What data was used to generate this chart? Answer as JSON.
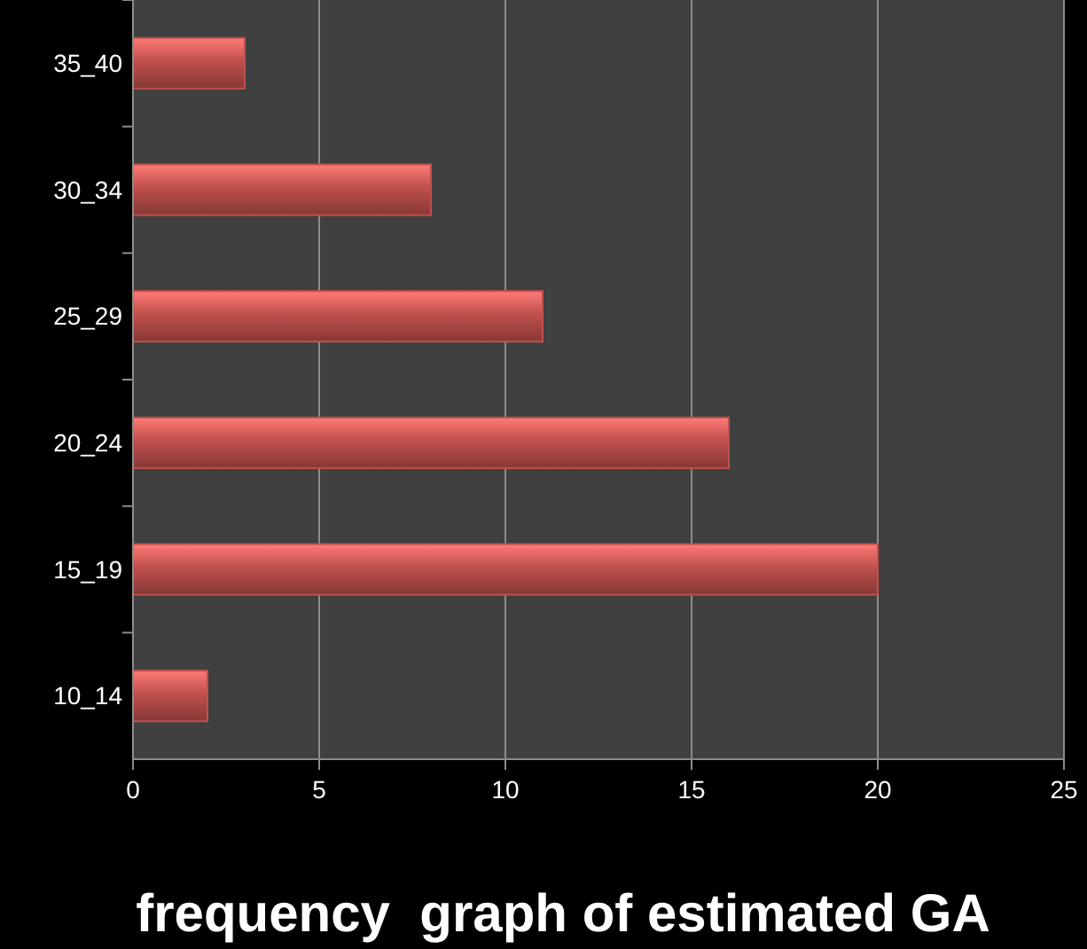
{
  "chart_data": {
    "type": "bar",
    "orientation": "horizontal",
    "title": "frequency  graph of estimated GA",
    "categories": [
      "35_40",
      "30_34",
      "25_29",
      "20_24",
      "15_19",
      "10_14"
    ],
    "values": [
      3,
      8,
      11,
      16,
      20,
      2
    ],
    "color": "#c0504d",
    "xlim": [
      0,
      25
    ],
    "xticks": [
      0,
      5,
      10,
      15,
      20,
      25
    ],
    "grid": "x"
  }
}
